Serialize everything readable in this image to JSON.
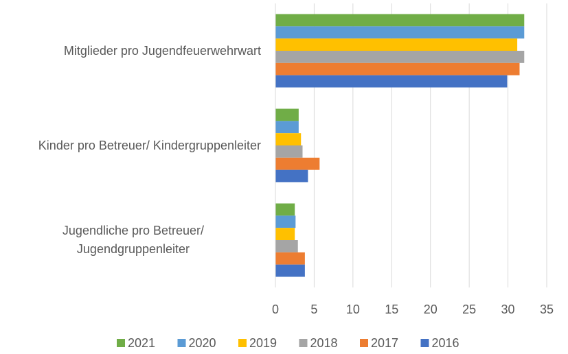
{
  "chart_data": {
    "type": "barh",
    "categories": [
      "Mitglieder pro Jugendfeuerwehrwart",
      "Kinder pro Betreuer/ Kindergruppenleiter",
      "Jugendliche pro Betreuer/ Jugendgruppenleiter"
    ],
    "series": [
      {
        "name": "2021",
        "color": "#70ad47",
        "values": [
          32.1,
          3.0,
          2.5
        ]
      },
      {
        "name": "2020",
        "color": "#5b9bd5",
        "values": [
          32.1,
          3.0,
          2.6
        ]
      },
      {
        "name": "2019",
        "color": "#ffc000",
        "values": [
          31.2,
          3.3,
          2.5
        ]
      },
      {
        "name": "2018",
        "color": "#a5a5a5",
        "values": [
          32.1,
          3.5,
          2.9
        ]
      },
      {
        "name": "2017",
        "color": "#ed7d31",
        "values": [
          31.5,
          5.7,
          3.8
        ]
      },
      {
        "name": "2016",
        "color": "#4472c4",
        "values": [
          29.9,
          4.2,
          3.8
        ]
      }
    ],
    "xlim": [
      0,
      35
    ],
    "xticks": [
      0,
      5,
      10,
      15,
      20,
      25,
      30,
      35
    ],
    "grid": true,
    "legend": "bottom"
  }
}
